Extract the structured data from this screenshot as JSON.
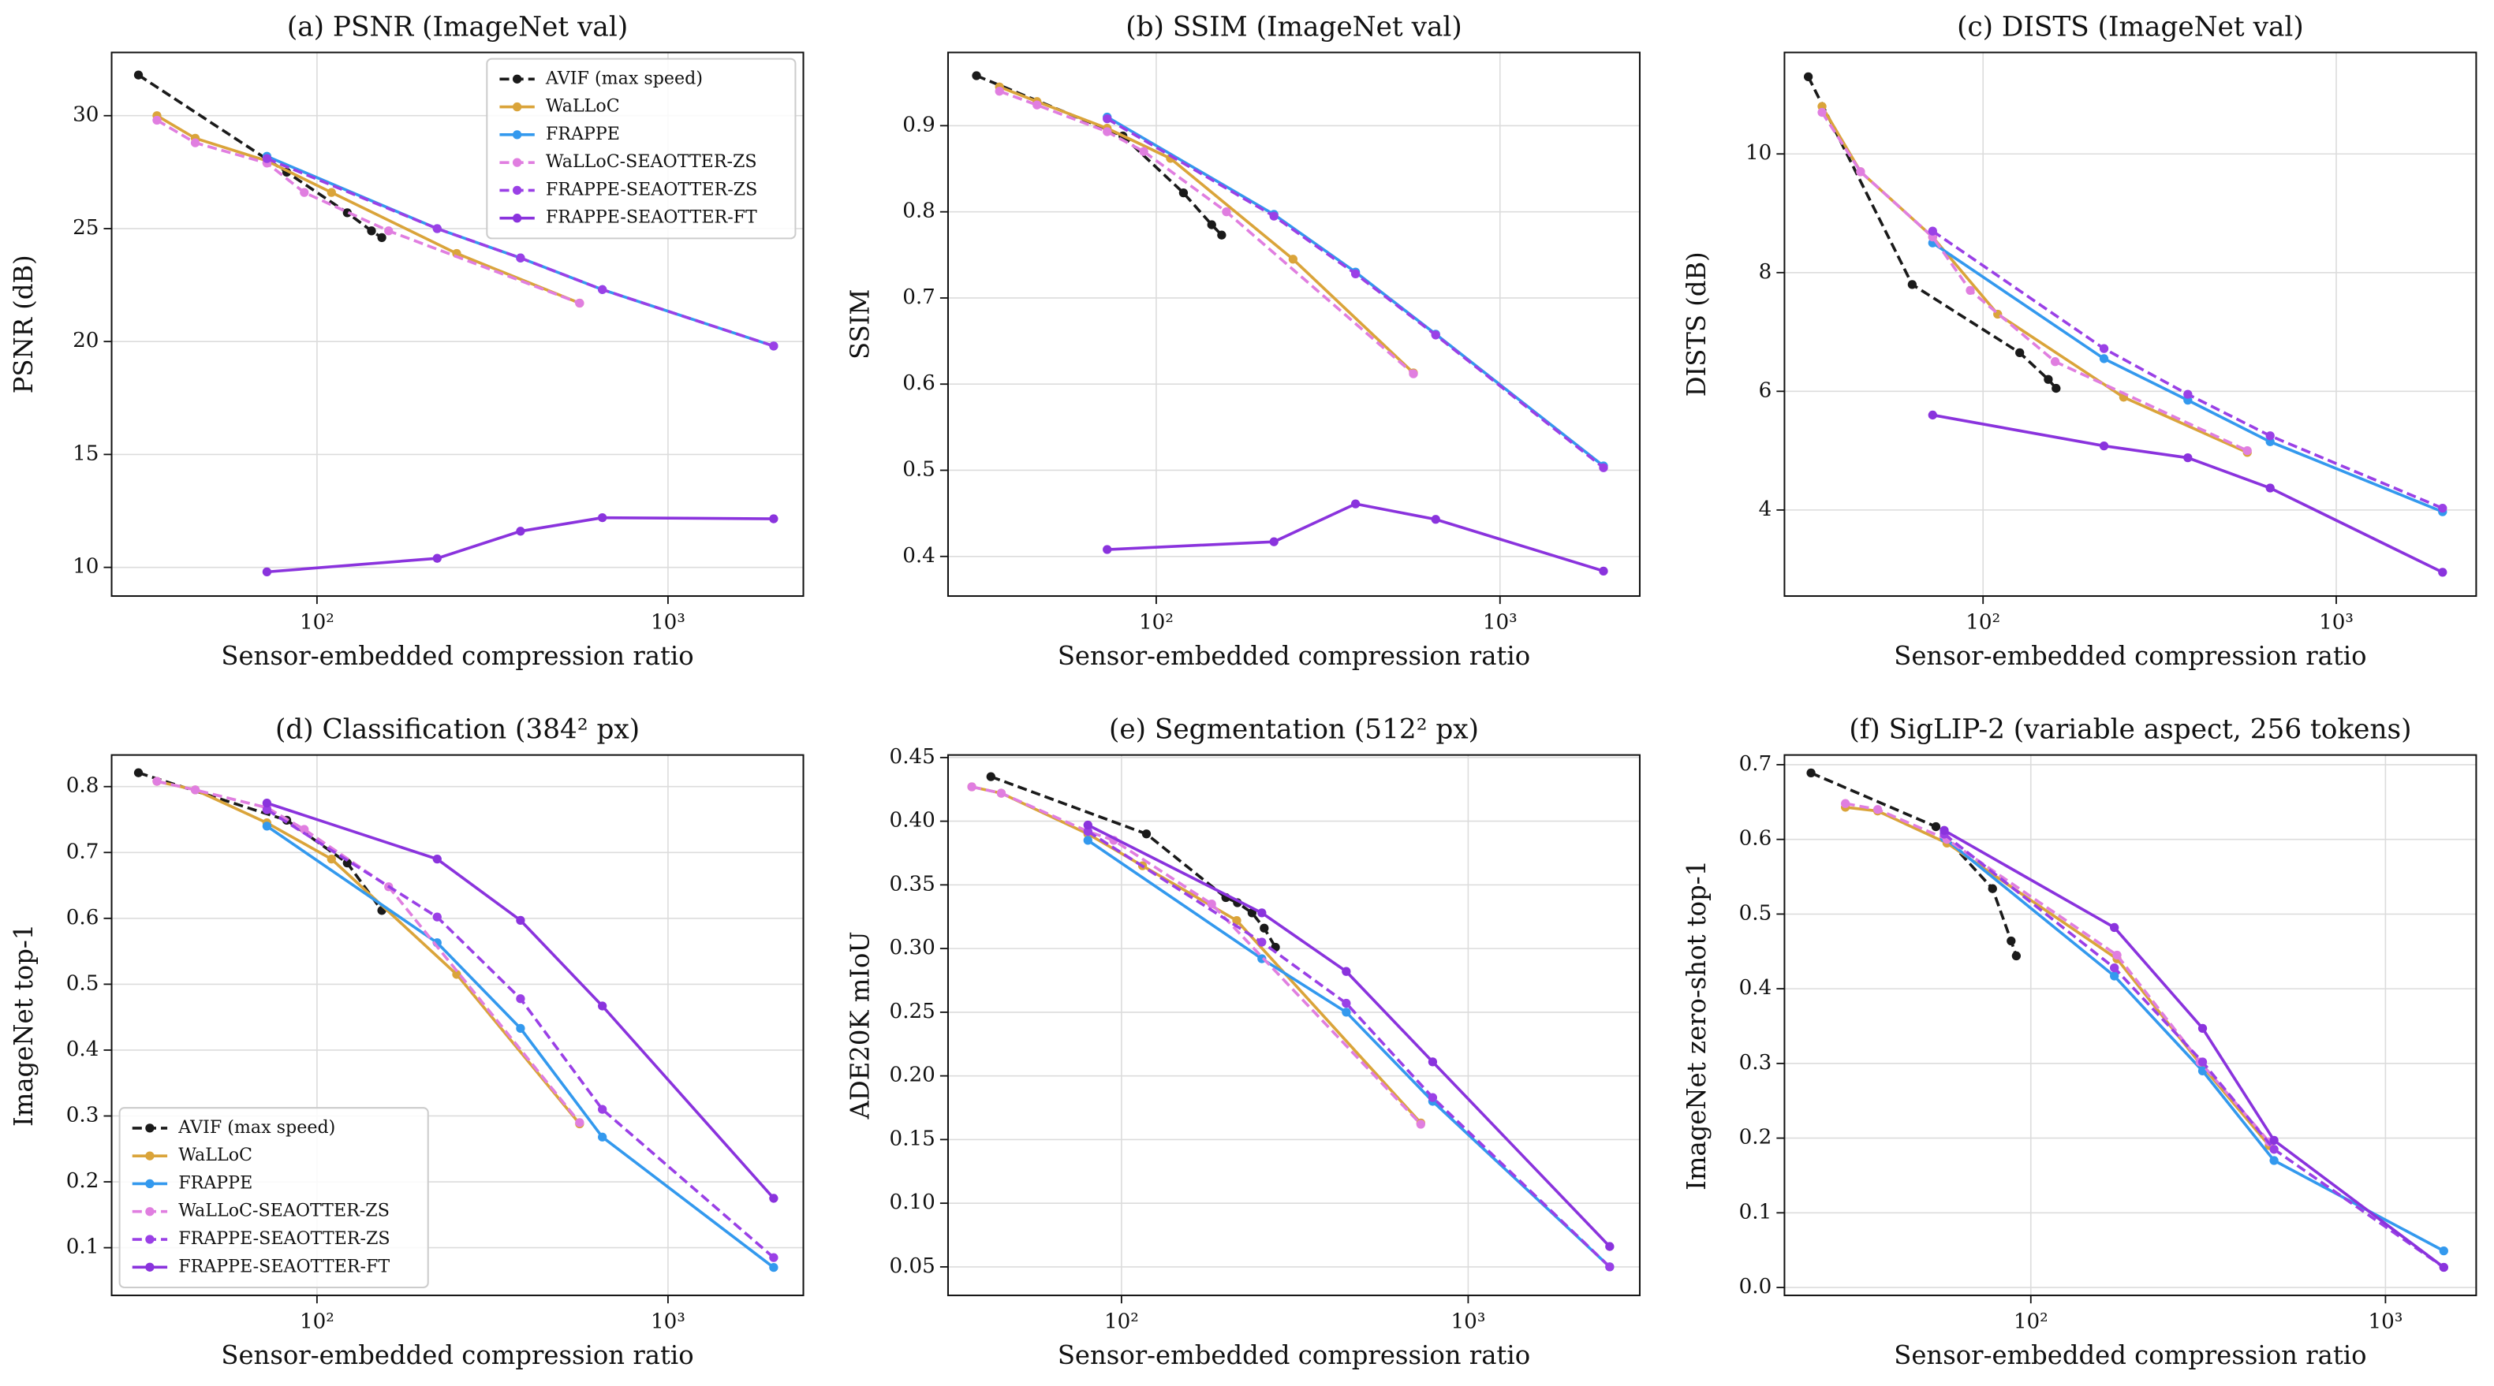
{
  "chart_data": [
    {
      "type": "line",
      "title": "(a) PSNR (ImageNet val)",
      "xlabel": "Sensor-embedded compression ratio",
      "ylabel": "PSNR (dB)",
      "xscale": "log",
      "grid": true,
      "legend": "upper right",
      "xlim": [
        26,
        2430
      ],
      "xticks": [
        {
          "value": 100,
          "label": "10²"
        },
        {
          "value": 1000,
          "label": "10³"
        }
      ],
      "ylim": [
        8.73,
        32.8
      ],
      "yticks": [
        10,
        15,
        20,
        25,
        30
      ],
      "series": [
        {
          "name": "AVIF (max speed)",
          "color": "#1a1a1a",
          "linestyle": "dashed",
          "x": [
            31,
            82,
            122,
            143,
            153
          ],
          "values": [
            31.8,
            27.5,
            25.7,
            24.9,
            24.6
          ]
        },
        {
          "name": "WaLLoC",
          "color": "#daa43a",
          "linestyle": "solid",
          "x": [
            35,
            45,
            72,
            110,
            250,
            560
          ],
          "values": [
            30.0,
            29.0,
            28.0,
            26.6,
            23.9,
            21.7
          ]
        },
        {
          "name": "FRAPPE",
          "color": "#3399ee",
          "linestyle": "solid",
          "x": [
            72,
            220,
            380,
            650,
            2000
          ],
          "values": [
            28.2,
            25.0,
            23.7,
            22.3,
            19.8
          ]
        },
        {
          "name": "WaLLoC-SEAOTTER-ZS",
          "color": "#e07ee0",
          "linestyle": "dashed",
          "x": [
            35,
            45,
            72,
            92,
            160,
            560
          ],
          "values": [
            29.8,
            28.8,
            27.9,
            26.6,
            24.9,
            21.7
          ]
        },
        {
          "name": "FRAPPE-SEAOTTER-ZS",
          "color": "#9a40e6",
          "linestyle": "dashed",
          "x": [
            72,
            220,
            380,
            650,
            2000
          ],
          "values": [
            28.1,
            25.0,
            23.7,
            22.3,
            19.8
          ]
        },
        {
          "name": "FRAPPE-SEAOTTER-FT",
          "color": "#8a33dd",
          "linestyle": "solid",
          "x": [
            72,
            220,
            380,
            650,
            2000
          ],
          "values": [
            9.8,
            10.4,
            11.6,
            12.2,
            12.15
          ]
        }
      ]
    },
    {
      "type": "line",
      "title": "(b) SSIM (ImageNet val)",
      "xlabel": "Sensor-embedded compression ratio",
      "ylabel": "SSIM",
      "xscale": "log",
      "grid": true,
      "xlim": [
        24.8,
        2550
      ],
      "xticks": [
        {
          "value": 100,
          "label": "10²"
        },
        {
          "value": 1000,
          "label": "10³"
        }
      ],
      "ylim": [
        0.354,
        0.985
      ],
      "yticks": [
        0.4,
        0.5,
        0.6,
        0.7,
        0.8,
        0.9
      ],
      "series": [
        {
          "name": "AVIF (max speed)",
          "color": "#1a1a1a",
          "linestyle": "dashed",
          "x": [
            30,
            80,
            120,
            145,
            155
          ],
          "values": [
            0.958,
            0.888,
            0.822,
            0.785,
            0.773
          ]
        },
        {
          "name": "WaLLoC",
          "color": "#daa43a",
          "linestyle": "solid",
          "x": [
            35,
            45,
            72,
            110,
            250,
            560
          ],
          "values": [
            0.945,
            0.928,
            0.897,
            0.862,
            0.745,
            0.613
          ]
        },
        {
          "name": "FRAPPE",
          "color": "#3399ee",
          "linestyle": "solid",
          "x": [
            72,
            220,
            380,
            650,
            2000
          ],
          "values": [
            0.91,
            0.797,
            0.73,
            0.658,
            0.505
          ]
        },
        {
          "name": "WaLLoC-SEAOTTER-ZS",
          "color": "#e07ee0",
          "linestyle": "dashed",
          "x": [
            35,
            45,
            72,
            92,
            160,
            560
          ],
          "values": [
            0.94,
            0.924,
            0.893,
            0.87,
            0.8,
            0.612
          ]
        },
        {
          "name": "FRAPPE-SEAOTTER-ZS",
          "color": "#9a40e6",
          "linestyle": "dashed",
          "x": [
            72,
            220,
            380,
            650,
            2000
          ],
          "values": [
            0.908,
            0.795,
            0.728,
            0.657,
            0.503
          ]
        },
        {
          "name": "FRAPPE-SEAOTTER-FT",
          "color": "#8a33dd",
          "linestyle": "solid",
          "x": [
            72,
            220,
            380,
            650,
            2000
          ],
          "values": [
            0.408,
            0.417,
            0.461,
            0.443,
            0.383
          ]
        }
      ]
    },
    {
      "type": "line",
      "title": "(c) DISTS (ImageNet val)",
      "xlabel": "Sensor-embedded compression ratio",
      "ylabel": "DISTS (dB)",
      "xscale": "log",
      "grid": true,
      "xlim": [
        27.4,
        2490
      ],
      "xticks": [
        {
          "value": 100,
          "label": "10²"
        },
        {
          "value": 1000,
          "label": "10³"
        }
      ],
      "ylim": [
        2.55,
        11.71
      ],
      "yticks": [
        4,
        6,
        8,
        10
      ],
      "series": [
        {
          "name": "AVIF (max speed)",
          "color": "#1a1a1a",
          "linestyle": "dashed",
          "x": [
            32,
            63,
            127,
            153,
            161
          ],
          "values": [
            11.3,
            7.8,
            6.65,
            6.2,
            6.05
          ]
        },
        {
          "name": "WaLLoC",
          "color": "#daa43a",
          "linestyle": "solid",
          "x": [
            35,
            45,
            72,
            110,
            250,
            560
          ],
          "values": [
            10.8,
            9.7,
            8.6,
            7.3,
            5.9,
            4.97
          ]
        },
        {
          "name": "FRAPPE",
          "color": "#3399ee",
          "linestyle": "solid",
          "x": [
            72,
            220,
            380,
            650,
            2000
          ],
          "values": [
            8.5,
            6.55,
            5.85,
            5.15,
            3.97
          ]
        },
        {
          "name": "WaLLoC-SEAOTTER-ZS",
          "color": "#e07ee0",
          "linestyle": "dashed",
          "x": [
            35,
            45,
            72,
            92,
            160,
            560
          ],
          "values": [
            10.7,
            9.7,
            8.6,
            7.7,
            6.5,
            5.0
          ]
        },
        {
          "name": "FRAPPE-SEAOTTER-ZS",
          "color": "#9a40e6",
          "linestyle": "dashed",
          "x": [
            72,
            220,
            380,
            650,
            2000
          ],
          "values": [
            8.7,
            6.72,
            5.95,
            5.25,
            4.03
          ]
        },
        {
          "name": "FRAPPE-SEAOTTER-FT",
          "color": "#8a33dd",
          "linestyle": "solid",
          "x": [
            72,
            220,
            380,
            650,
            2000
          ],
          "values": [
            5.6,
            5.08,
            4.88,
            4.37,
            2.95
          ]
        }
      ]
    },
    {
      "type": "line",
      "title": "(d) Classification (384² px)",
      "xlabel": "Sensor-embedded compression ratio",
      "ylabel": "ImageNet top-1",
      "xscale": "log",
      "grid": true,
      "legend": "lower left",
      "xlim": [
        26,
        2430
      ],
      "xticks": [
        {
          "value": 100,
          "label": "10²"
        },
        {
          "value": 1000,
          "label": "10³"
        }
      ],
      "ylim": [
        0.0276,
        0.848
      ],
      "yticks": [
        0.1,
        0.2,
        0.3,
        0.4,
        0.5,
        0.6,
        0.7,
        0.8
      ],
      "series": [
        {
          "name": "AVIF (max speed)",
          "color": "#1a1a1a",
          "linestyle": "dashed",
          "x": [
            31,
            82,
            122,
            153
          ],
          "values": [
            0.821,
            0.749,
            0.684,
            0.612
          ]
        },
        {
          "name": "WaLLoC",
          "color": "#daa43a",
          "linestyle": "solid",
          "x": [
            35,
            45,
            72,
            110,
            250,
            560
          ],
          "values": [
            0.808,
            0.795,
            0.745,
            0.69,
            0.515,
            0.288
          ]
        },
        {
          "name": "FRAPPE",
          "color": "#3399ee",
          "linestyle": "solid",
          "x": [
            72,
            220,
            380,
            650,
            2000
          ],
          "values": [
            0.74,
            0.563,
            0.433,
            0.268,
            0.07
          ]
        },
        {
          "name": "WaLLoC-SEAOTTER-ZS",
          "color": "#e07ee0",
          "linestyle": "dashed",
          "x": [
            35,
            45,
            72,
            92,
            160,
            560
          ],
          "values": [
            0.808,
            0.795,
            0.768,
            0.735,
            0.648,
            0.29
          ]
        },
        {
          "name": "FRAPPE-SEAOTTER-ZS",
          "color": "#9a40e6",
          "linestyle": "dashed",
          "x": [
            72,
            220,
            380,
            650,
            2000
          ],
          "values": [
            0.765,
            0.602,
            0.478,
            0.31,
            0.085
          ]
        },
        {
          "name": "FRAPPE-SEAOTTER-FT",
          "color": "#8a33dd",
          "linestyle": "solid",
          "x": [
            72,
            220,
            380,
            650,
            2000
          ],
          "values": [
            0.775,
            0.69,
            0.597,
            0.467,
            0.175
          ]
        }
      ]
    },
    {
      "type": "line",
      "title": "(e) Segmentation (512² px)",
      "xlabel": "Sensor-embedded compression ratio",
      "ylabel": "ADE20K mIoU",
      "xscale": "log",
      "grid": true,
      "xlim": [
        31.6,
        3126
      ],
      "xticks": [
        {
          "value": 100,
          "label": "10²"
        },
        {
          "value": 1000,
          "label": "10³"
        }
      ],
      "ylim": [
        0.0276,
        0.452
      ],
      "yticks": [
        0.05,
        {
          "value": 0.1,
          "label": "0.10"
        },
        0.15,
        {
          "value": 0.2,
          "label": "0.20"
        },
        0.25,
        {
          "value": 0.3,
          "label": "0.30"
        },
        0.35,
        {
          "value": 0.4,
          "label": "0.40"
        },
        0.45
      ],
      "series": [
        {
          "name": "AVIF (max speed)",
          "color": "#1a1a1a",
          "linestyle": "dashed",
          "x": [
            42,
            118,
            200,
            216,
            238,
            258,
            278
          ],
          "values": [
            0.435,
            0.39,
            0.34,
            0.336,
            0.328,
            0.316,
            0.301
          ]
        },
        {
          "name": "WaLLoC",
          "color": "#daa43a",
          "linestyle": "solid",
          "x": [
            37,
            45,
            80,
            115,
            215,
            730
          ],
          "values": [
            0.427,
            0.422,
            0.39,
            0.365,
            0.322,
            0.163
          ]
        },
        {
          "name": "FRAPPE",
          "color": "#3399ee",
          "linestyle": "solid",
          "x": [
            80,
            254,
            445,
            790,
            2560
          ],
          "values": [
            0.385,
            0.292,
            0.25,
            0.18,
            0.05
          ]
        },
        {
          "name": "WaLLoC-SEAOTTER-ZS",
          "color": "#e07ee0",
          "linestyle": "dashed",
          "x": [
            37,
            45,
            80,
            95,
            182,
            730
          ],
          "values": [
            0.427,
            0.422,
            0.392,
            0.385,
            0.335,
            0.162
          ]
        },
        {
          "name": "FRAPPE-SEAOTTER-ZS",
          "color": "#9a40e6",
          "linestyle": "dashed",
          "x": [
            80,
            254,
            445,
            790,
            2560
          ],
          "values": [
            0.392,
            0.305,
            0.257,
            0.183,
            0.05
          ]
        },
        {
          "name": "FRAPPE-SEAOTTER-FT",
          "color": "#8a33dd",
          "linestyle": "solid",
          "x": [
            80,
            254,
            445,
            790,
            2560
          ],
          "values": [
            0.397,
            0.328,
            0.282,
            0.211,
            0.066
          ]
        }
      ]
    },
    {
      "type": "line",
      "title": "(f) SigLIP-2 (variable aspect, 256 tokens)",
      "xlabel": "Sensor-embedded compression ratio",
      "ylabel": "ImageNet zero-shot top-1",
      "xscale": "log",
      "grid": true,
      "xlim": [
        20.2,
        1802
      ],
      "xticks": [
        {
          "value": 100,
          "label": "10²"
        },
        {
          "value": 1000,
          "label": "10³"
        }
      ],
      "ylim": [
        -0.0106,
        0.713
      ],
      "yticks": [
        {
          "value": 0,
          "label": "0.0"
        },
        0.1,
        0.2,
        0.3,
        0.4,
        0.5,
        0.6,
        0.7
      ],
      "series": [
        {
          "name": "AVIF (max speed)",
          "color": "#1a1a1a",
          "linestyle": "dashed",
          "x": [
            24,
            54,
            78,
            88,
            91
          ],
          "values": [
            0.689,
            0.617,
            0.534,
            0.464,
            0.444
          ]
        },
        {
          "name": "WaLLoC",
          "color": "#daa43a",
          "linestyle": "solid",
          "x": [
            30,
            37,
            58,
            175,
            300,
            470
          ],
          "values": [
            0.643,
            0.638,
            0.595,
            0.44,
            0.3,
            0.19
          ]
        },
        {
          "name": "FRAPPE",
          "color": "#3399ee",
          "linestyle": "solid",
          "x": [
            57,
            172,
            305,
            485,
            1460
          ],
          "values": [
            0.602,
            0.417,
            0.29,
            0.17,
            0.049
          ]
        },
        {
          "name": "WaLLoC-SEAOTTER-ZS",
          "color": "#e07ee0",
          "linestyle": "dashed",
          "x": [
            30,
            37,
            58,
            175,
            300,
            470
          ],
          "values": [
            0.648,
            0.64,
            0.6,
            0.445,
            0.302,
            0.195
          ]
        },
        {
          "name": "FRAPPE-SEAOTTER-ZS",
          "color": "#9a40e6",
          "linestyle": "dashed",
          "x": [
            57,
            172,
            305,
            485,
            1460
          ],
          "values": [
            0.607,
            0.428,
            0.302,
            0.185,
            0.027
          ]
        },
        {
          "name": "FRAPPE-SEAOTTER-FT",
          "color": "#8a33dd",
          "linestyle": "solid",
          "x": [
            57,
            172,
            305,
            485,
            1460
          ],
          "values": [
            0.612,
            0.482,
            0.347,
            0.197,
            0.027
          ]
        }
      ]
    }
  ]
}
